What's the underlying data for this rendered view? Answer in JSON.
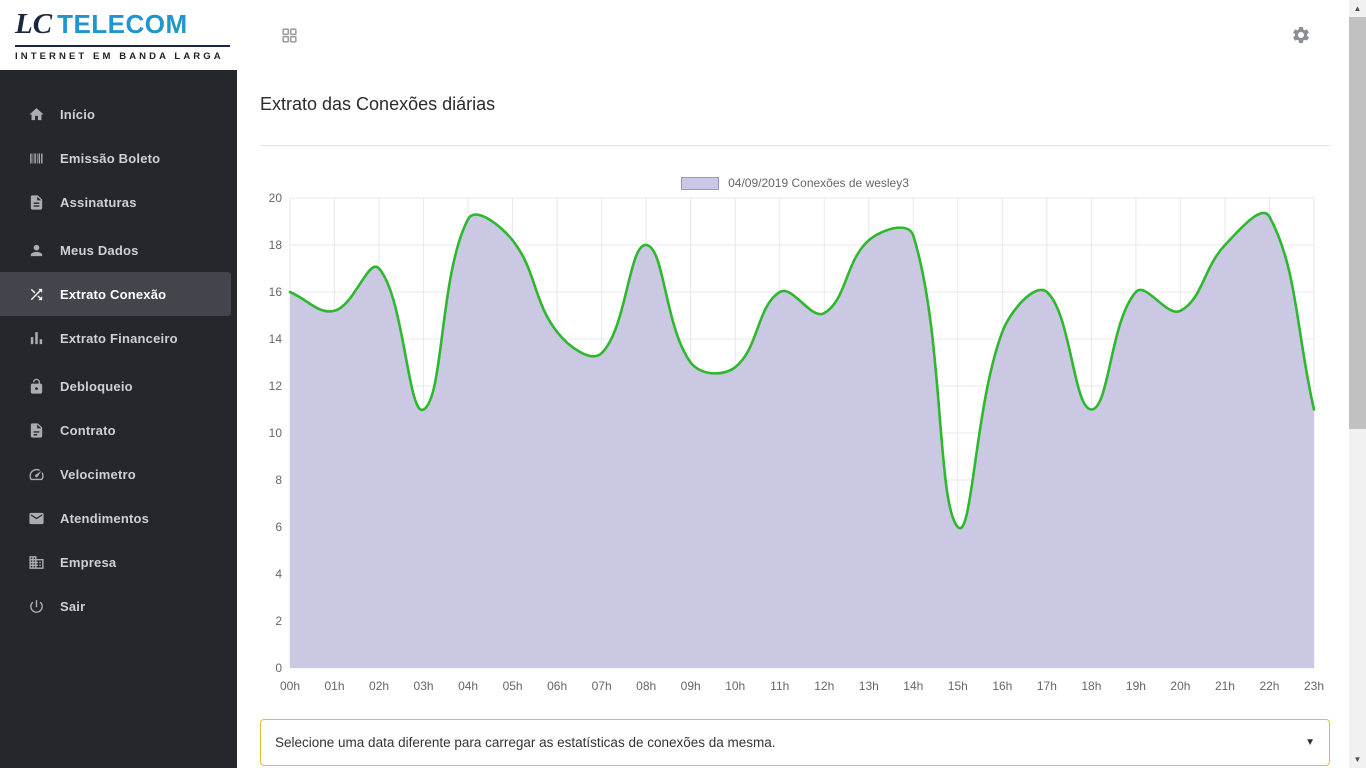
{
  "header": {
    "logo_lc": "LC",
    "logo_telecom": "TELECOM",
    "logo_subtitle": "INTERNET EM BANDA LARGA"
  },
  "sidebar": {
    "items": [
      {
        "label": "Início",
        "icon": "home-icon",
        "active": false
      },
      {
        "label": "Emissão Boleto",
        "icon": "barcode-icon",
        "active": false
      },
      {
        "label": "Assinaturas",
        "icon": "document-icon",
        "active": false
      },
      {
        "label": "Meus Dados",
        "icon": "user-icon",
        "active": false
      },
      {
        "label": "Extrato Conexão",
        "icon": "shuffle-icon",
        "active": true
      },
      {
        "label": "Extrato Financeiro",
        "icon": "bar-chart-icon",
        "active": false
      },
      {
        "label": "Debloqueio",
        "icon": "unlock-icon",
        "active": false
      },
      {
        "label": "Contrato",
        "icon": "contract-icon",
        "active": false
      },
      {
        "label": "Velocimetro",
        "icon": "speedometer-icon",
        "active": false
      },
      {
        "label": "Atendimentos",
        "icon": "mail-icon",
        "active": false
      },
      {
        "label": "Empresa",
        "icon": "building-icon",
        "active": false
      },
      {
        "label": "Sair",
        "icon": "power-icon",
        "active": false
      }
    ]
  },
  "main": {
    "title": "Extrato das Conexões diárias",
    "date_select": {
      "value": "Selecione uma data diferente para carregar as estatísticas de conexões da mesma.",
      "caret_icon": "▼",
      "border_color": "#e2c12b"
    }
  },
  "scrollbar": {
    "up_arrow": "▲",
    "down_arrow": "▼"
  },
  "chart_data": {
    "type": "area",
    "title": "",
    "legend": "04/09/2019 Conexões de wesley3",
    "legend_position": "top",
    "categories": [
      "00h",
      "01h",
      "02h",
      "03h",
      "04h",
      "05h",
      "06h",
      "07h",
      "08h",
      "09h",
      "10h",
      "11h",
      "12h",
      "13h",
      "14h",
      "15h",
      "16h",
      "17h",
      "18h",
      "19h",
      "20h",
      "21h",
      "22h",
      "23h"
    ],
    "values": [
      16,
      15.2,
      17,
      11,
      19.1,
      18.2,
      14.3,
      13.4,
      18,
      13,
      12.8,
      16,
      15.1,
      18.2,
      18.4,
      6,
      14.3,
      16,
      11,
      16,
      15.2,
      18,
      19.2,
      11
    ],
    "ylim": [
      0,
      20
    ],
    "ytick_step": 2,
    "xlabel": "",
    "ylabel": "",
    "grid": true,
    "line_color": "#2eb82e",
    "fill_color": "#cac8e2",
    "legend_swatch_border": "#9996c2",
    "grid_color": "#e8e8e8",
    "tick_color": "#666666"
  }
}
